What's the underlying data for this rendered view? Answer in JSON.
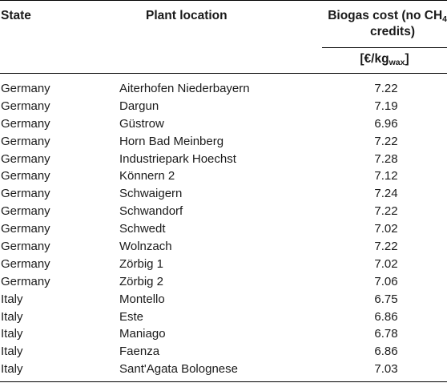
{
  "header": {
    "state": "State",
    "location": "Plant location",
    "cost_line1": "Biogas cost (no CH",
    "cost_sub": "4",
    "cost_line2": "credits)",
    "unit_prefix": "[€/kg",
    "unit_sub": "wax",
    "unit_suffix": "]"
  },
  "rows": [
    {
      "state": "Germany",
      "location": "Aiterhofen Niederbayern",
      "cost": "7.22"
    },
    {
      "state": "Germany",
      "location": "Dargun",
      "cost": "7.19"
    },
    {
      "state": "Germany",
      "location": "Güstrow",
      "cost": "6.96"
    },
    {
      "state": "Germany",
      "location": "Horn Bad Meinberg",
      "cost": "7.22"
    },
    {
      "state": "Germany",
      "location": "Industriepark Hoechst",
      "cost": "7.28"
    },
    {
      "state": "Germany",
      "location": "Könnern 2",
      "cost": "7.12"
    },
    {
      "state": "Germany",
      "location": "Schwaigern",
      "cost": "7.24"
    },
    {
      "state": "Germany",
      "location": "Schwandorf",
      "cost": "7.22"
    },
    {
      "state": "Germany",
      "location": "Schwedt",
      "cost": "7.02"
    },
    {
      "state": "Germany",
      "location": "Wolnzach",
      "cost": "7.22"
    },
    {
      "state": "Germany",
      "location": "Zörbig 1",
      "cost": "7.02"
    },
    {
      "state": "Germany",
      "location": "Zörbig 2",
      "cost": "7.06"
    },
    {
      "state": "Italy",
      "location": "Montello",
      "cost": "6.75"
    },
    {
      "state": "Italy",
      "location": "Este",
      "cost": "6.86"
    },
    {
      "state": "Italy",
      "location": "Maniago",
      "cost": "6.78"
    },
    {
      "state": "Italy",
      "location": "Faenza",
      "cost": "6.86"
    },
    {
      "state": "Italy",
      "location": "Sant'Agata Bolognese",
      "cost": "7.03"
    }
  ]
}
